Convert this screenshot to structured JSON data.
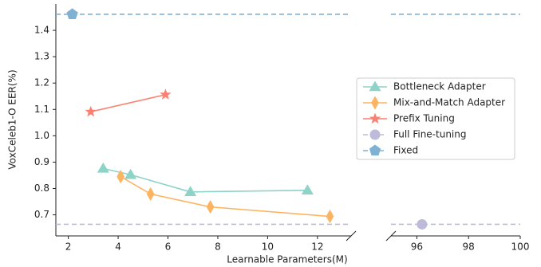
{
  "chart_data": {
    "type": "line",
    "x_label": "Learnable Parameters(M)",
    "y_label": "VoxCeleb1-O EER(%)",
    "ylim": [
      0.62,
      1.5
    ],
    "yticks": [
      {
        "value": 0.7,
        "label": "0.7"
      },
      {
        "value": 0.8,
        "label": "0.8"
      },
      {
        "value": 0.9,
        "label": "0.9"
      },
      {
        "value": 1.0,
        "label": "1.0"
      },
      {
        "value": 1.1,
        "label": "1.1"
      },
      {
        "value": 1.2,
        "label": "1.2"
      },
      {
        "value": 1.3,
        "label": "1.3"
      },
      {
        "value": 1.4,
        "label": "1.4"
      }
    ],
    "x_segments": [
      {
        "xlim": [
          1.5,
          13.35
        ],
        "xticks": [
          2,
          4,
          6,
          8,
          10,
          12
        ]
      },
      {
        "xlim": [
          95,
          100
        ],
        "xticks": [
          96,
          98,
          100
        ]
      }
    ],
    "legend": "center right",
    "series": [
      {
        "name": "Bottleneck Adapter",
        "color": "#8dd3c7",
        "marker": "triangle",
        "style": "line",
        "x": [
          3.4,
          4.5,
          6.9,
          11.6
        ],
        "values": [
          0.876,
          0.852,
          0.787,
          0.793
        ]
      },
      {
        "name": "Mix-and-Match Adapter",
        "color": "#fdb462",
        "marker": "diamond",
        "style": "line",
        "x": [
          4.1,
          5.3,
          7.7,
          12.5
        ],
        "values": [
          0.845,
          0.779,
          0.73,
          0.694
        ]
      },
      {
        "name": "Prefix Tuning",
        "color": "#fb8072",
        "marker": "star",
        "style": "line",
        "x": [
          2.9,
          5.9
        ],
        "values": [
          1.091,
          1.156
        ]
      },
      {
        "name": "Full Fine-tuning",
        "color": "#bebada",
        "marker": "circle",
        "style": "hline",
        "x": [
          96.2
        ],
        "values": [
          0.664
        ]
      },
      {
        "name": "Fixed",
        "color": "#80b1d3",
        "marker": "pentagon",
        "style": "hline",
        "x": [
          2.16
        ],
        "values": [
          1.461
        ]
      }
    ]
  }
}
